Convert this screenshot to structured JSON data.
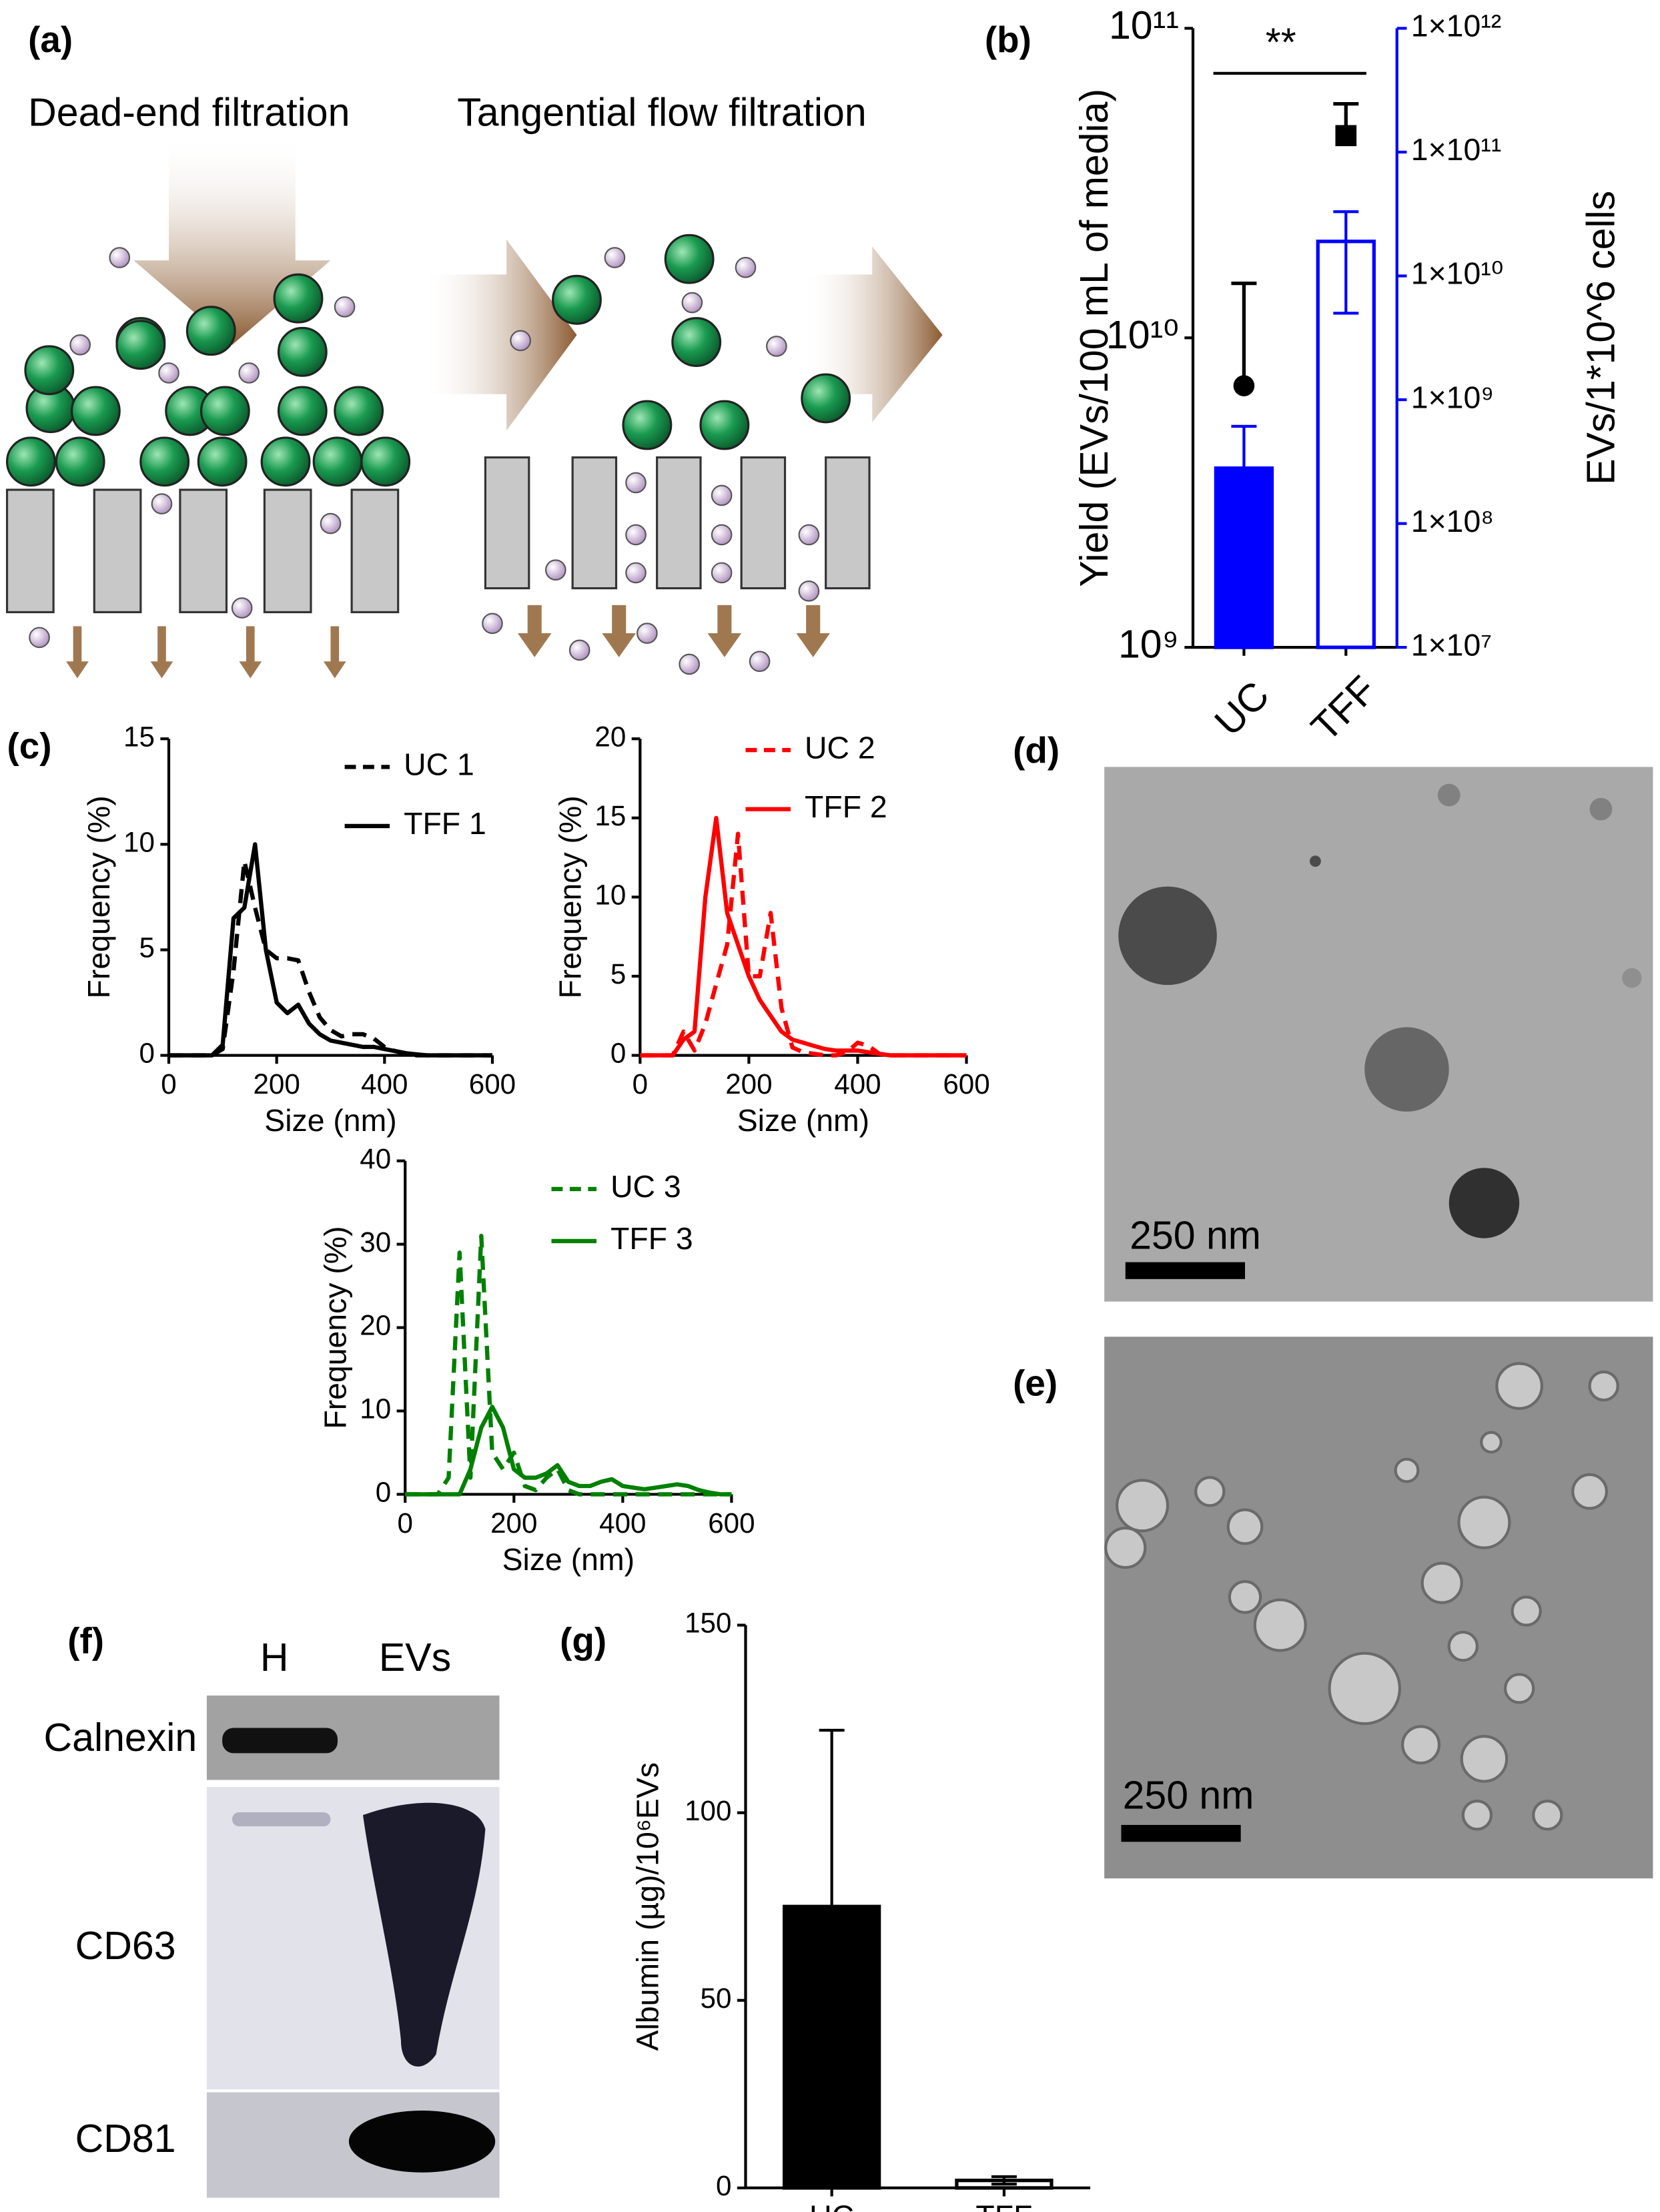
{
  "labels": [
    "(a)",
    "(b)",
    "(c)",
    "(d)",
    "(e)",
    "(f)",
    "(g)"
  ],
  "diagram": {
    "left_title": "Dead-end filtration",
    "right_title": "Tangential flow filtration"
  },
  "micrographs": [
    {
      "scale_bar": "250 nm"
    },
    {
      "scale_bar": "250 nm"
    }
  ],
  "blot": {
    "lanes": [
      "H",
      "EVs"
    ],
    "rows": [
      "Calnexin",
      "CD63",
      "CD81"
    ]
  },
  "chart_data": [
    {
      "type": "bar",
      "categories": [
        "UC",
        "TFF"
      ],
      "ylog": true,
      "y2log": true,
      "ylim": [
        1000000000,
        100000000000
      ],
      "yticks": [
        {
          "value": 1000000000,
          "label": "10⁹"
        },
        {
          "value": 10000000000,
          "label": "10¹⁰"
        },
        {
          "value": 100000000000,
          "label": "10¹¹"
        }
      ],
      "y2lim": [
        10000000,
        1000000000000
      ],
      "y2color": "#0000ff",
      "y2ticks": [
        {
          "value": 10000000,
          "label": "1×10⁷"
        },
        {
          "value": 100000000,
          "label": "1×10⁸"
        },
        {
          "value": 1000000000,
          "label": "1×10⁹"
        },
        {
          "value": 10000000000,
          "label": "1×10¹⁰"
        },
        {
          "value": 100000000000,
          "label": "1×10¹¹"
        },
        {
          "value": 1000000000000,
          "label": "1×10¹²"
        }
      ],
      "y_label": "Yield (EVs/100 mL of media)",
      "y2_label": "EVs/1*10^6 cells",
      "annotation": "**",
      "series": [
        {
          "axis": "y2",
          "color": "#0000ff",
          "fills": [
            "#0000ff",
            "#ffffff"
          ],
          "values": [
            280000000,
            19000000000
          ],
          "errors": [
            330000000,
            14000000000
          ]
        },
        {
          "color": "#000000",
          "markers": [
            "circle",
            "square"
          ],
          "values": [
            7000000000,
            45000000000
          ],
          "errors": [
            8000000000,
            12000000000
          ]
        }
      ]
    },
    {
      "type": "line",
      "x_label": "Size (nm)",
      "y_label": "Frequency (%)",
      "xlim": [
        0,
        600
      ],
      "xticks": [
        0,
        200,
        400,
        600
      ],
      "ylim": [
        0,
        15
      ],
      "yticks": [
        0,
        5,
        10,
        15
      ],
      "x": [
        0,
        20,
        40,
        60,
        80,
        100,
        120,
        140,
        160,
        180,
        200,
        220,
        240,
        260,
        280,
        300,
        320,
        340,
        360,
        380,
        400,
        420,
        440,
        460,
        480,
        500,
        520,
        540,
        560,
        580,
        600
      ],
      "series": [
        {
          "name": "UC 1",
          "color": "#000000",
          "style": "dashed",
          "values": [
            0,
            0,
            0,
            0,
            0,
            0.3,
            4,
            9.2,
            7,
            5,
            4.6,
            4.6,
            4.5,
            3,
            1.8,
            1.2,
            0.9,
            1,
            1,
            0.8,
            0.4,
            0.2,
            0.1,
            0,
            0,
            0,
            0,
            0,
            0,
            0,
            0
          ]
        },
        {
          "name": "TFF 1",
          "color": "#000000",
          "style": "solid",
          "values": [
            0,
            0,
            0,
            0,
            0,
            0.5,
            6.5,
            7,
            10,
            5,
            2.5,
            2,
            2.4,
            1.5,
            1,
            0.7,
            0.6,
            0.5,
            0.4,
            0.4,
            0.3,
            0.2,
            0.1,
            0.05,
            0,
            0,
            0,
            0,
            0,
            0,
            0
          ]
        }
      ]
    },
    {
      "type": "line",
      "x_label": "Size (nm)",
      "y_label": "Frequency (%)",
      "xlim": [
        0,
        600
      ],
      "xticks": [
        0,
        200,
        400,
        600
      ],
      "ylim": [
        0,
        20
      ],
      "yticks": [
        0,
        5,
        10,
        15,
        20
      ],
      "x": [
        0,
        20,
        40,
        60,
        80,
        100,
        120,
        140,
        160,
        180,
        200,
        220,
        240,
        260,
        280,
        300,
        320,
        340,
        360,
        380,
        400,
        420,
        440,
        460,
        480,
        500,
        520,
        540,
        560,
        580,
        600
      ],
      "series": [
        {
          "name": "UC 2",
          "color": "#ff0000",
          "style": "dashed",
          "values": [
            0,
            0,
            0,
            0,
            1.5,
            0.3,
            2,
            4.5,
            7,
            14,
            5,
            5,
            9,
            3,
            0.5,
            0.2,
            0.1,
            0,
            0,
            0.2,
            0.8,
            0.6,
            0.1,
            0,
            0,
            0,
            0,
            0,
            0,
            0,
            0
          ]
        },
        {
          "name": "TFF 2",
          "color": "#ff0000",
          "style": "solid",
          "values": [
            0,
            0,
            0,
            0,
            1,
            1.5,
            10,
            15,
            9,
            7,
            5,
            3.5,
            2.5,
            1.5,
            1,
            0.8,
            0.6,
            0.4,
            0.3,
            0.3,
            0.3,
            0.2,
            0.1,
            0,
            0,
            0,
            0,
            0,
            0,
            0,
            0
          ]
        }
      ]
    },
    {
      "type": "line",
      "x_label": "Size (nm)",
      "y_label": "Frequency (%)",
      "xlim": [
        0,
        600
      ],
      "xticks": [
        0,
        200,
        400,
        600
      ],
      "ylim": [
        0,
        40
      ],
      "yticks": [
        0,
        10,
        20,
        30,
        40
      ],
      "x": [
        0,
        20,
        40,
        60,
        80,
        100,
        120,
        140,
        160,
        180,
        200,
        220,
        240,
        260,
        280,
        300,
        320,
        340,
        360,
        380,
        400,
        420,
        440,
        460,
        480,
        500,
        520,
        540,
        560,
        580,
        600
      ],
      "series": [
        {
          "name": "UC 3",
          "color": "#008000",
          "style": "dashed",
          "values": [
            0,
            0,
            0,
            0,
            2,
            29,
            2,
            31,
            5,
            3,
            5,
            1,
            0.5,
            2,
            3,
            0.5,
            0,
            0,
            0,
            0,
            0,
            0,
            0,
            0,
            0,
            0,
            0,
            0,
            0,
            0,
            0
          ]
        },
        {
          "name": "TFF 3",
          "color": "#008000",
          "style": "solid",
          "values": [
            0,
            0,
            0,
            0,
            0,
            0,
            3,
            8,
            10.5,
            8,
            3,
            2,
            2,
            2.5,
            3.5,
            1.5,
            1,
            1,
            1.5,
            1.8,
            1,
            0.8,
            0.6,
            0.8,
            1,
            1.2,
            1,
            0.5,
            0.2,
            0,
            0
          ]
        }
      ]
    },
    {
      "type": "bar",
      "categories": [
        "UC",
        "TFF"
      ],
      "y_label": "Albumin (µg)/10⁶EVs",
      "ylim": [
        0,
        150
      ],
      "yticks": [
        0,
        50,
        100,
        150
      ],
      "color": "#000000",
      "fills": [
        "#000000",
        "#ffffff"
      ],
      "values": [
        75,
        2
      ],
      "errors": [
        47,
        1
      ]
    }
  ]
}
